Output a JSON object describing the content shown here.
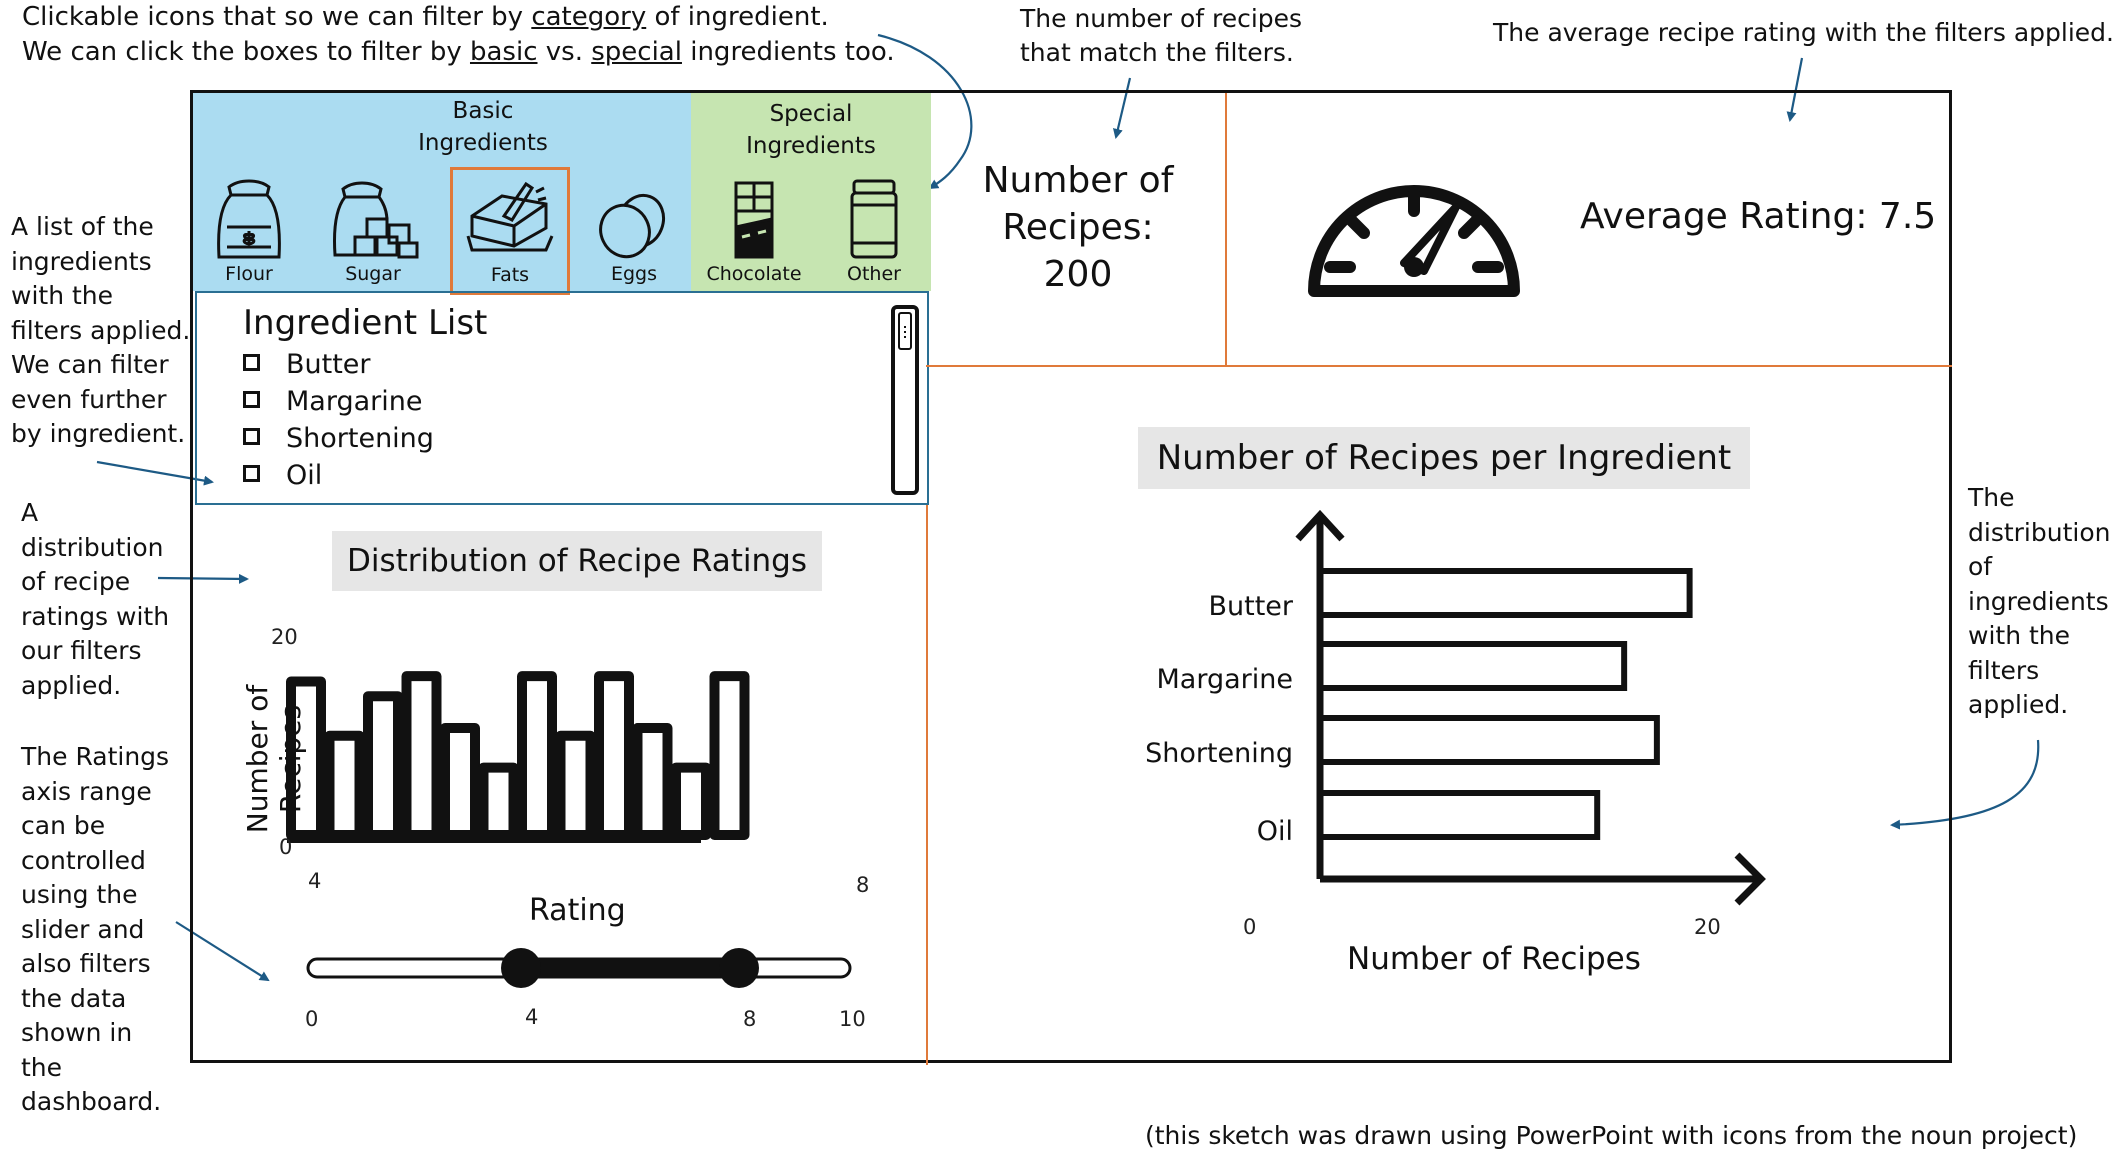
{
  "annotations": {
    "top_left_line1": "Clickable icons that so we can filter by",
    "top_left_category": "category",
    "top_left_line1_end": "of ingredient.",
    "top_left_line2_start": "We can click the boxes to filter by",
    "top_left_basic": "basic",
    "top_left_vs": "vs.",
    "top_left_special": "special",
    "top_left_line2_end": "ingredients too.",
    "recipe_count_line1": "The number of recipes",
    "recipe_count_line2": "that match the filters.",
    "average_rating": "The average recipe rating with the filters applied.",
    "ingredient_list": [
      "A list of the",
      "ingredients",
      "with the",
      "filters applied.",
      "We can filter",
      "even further",
      "by ingredient."
    ],
    "rating_distribution": [
      "A",
      "distribution",
      "of recipe",
      "ratings with",
      "our filters",
      "applied."
    ],
    "ratings_slider": [
      "The Ratings",
      "axis range",
      "can be",
      "controlled",
      "using the",
      "slider and",
      "also filters",
      "the data",
      "shown in",
      "the",
      "dashboard."
    ],
    "ingredient_distribution": [
      "The",
      "distribution",
      "of",
      "ingredients",
      "with the",
      "filters",
      "applied."
    ],
    "credit": "(this sketch was drawn using PowerPoint with icons from the noun project)"
  },
  "categories": {
    "basic_heading": [
      "Basic",
      "Ingredients"
    ],
    "special_heading": [
      "Special",
      "Ingredients"
    ],
    "items": [
      {
        "label": "Flour",
        "icon": "flour-bag-icon",
        "selected": false
      },
      {
        "label": "Sugar",
        "icon": "sugar-icon",
        "selected": false
      },
      {
        "label": "Fats",
        "icon": "butter-icon",
        "selected": true
      },
      {
        "label": "Eggs",
        "icon": "eggs-icon",
        "selected": false
      },
      {
        "label": "Chocolate",
        "icon": "chocolate-icon",
        "selected": false
      },
      {
        "label": "Other",
        "icon": "jar-icon",
        "selected": false
      }
    ],
    "colors": {
      "basic": "#abdcf1",
      "special": "#c6e5b1",
      "selected_border": "#e07a3a"
    }
  },
  "ingredient_list": {
    "title": "Ingredient List",
    "items": [
      "Butter",
      "Margarine",
      "Shortening",
      "Oil"
    ]
  },
  "recipe_count": {
    "line1": "Number of",
    "line2": "Recipes:",
    "value": "200"
  },
  "average_rating": {
    "label": "Average Rating: 7.5",
    "icon": "gauge-icon"
  },
  "ratings_slider": {
    "min_label": "0",
    "low_label": "4",
    "high_label": "8",
    "max_label": "10"
  },
  "chart_data": [
    {
      "type": "bar",
      "title": "Distribution of Recipe Ratings",
      "xlabel": "Rating",
      "ylabel": "Number of Recipes",
      "xlim": [
        4,
        8
      ],
      "ylim": [
        0,
        20
      ],
      "x_tick_labels": [
        "4",
        "8"
      ],
      "y_tick_labels": [
        "0",
        "20"
      ],
      "values": [
        19.8,
        12.8,
        17.9,
        20.5,
        13.8,
        8.7,
        20.5,
        12.8,
        20.5,
        13.8,
        8.7,
        20.5
      ]
    },
    {
      "type": "bar",
      "orientation": "horizontal",
      "title": "Number of Recipes per Ingredient",
      "xlabel": "Number of Recipes",
      "ylabel": "",
      "xlim": [
        0,
        20
      ],
      "x_tick_labels": [
        "0",
        "20"
      ],
      "categories": [
        "Butter",
        "Margarine",
        "Shortening",
        "Oil"
      ],
      "values": [
        19.2,
        15.8,
        17.5,
        14.4
      ]
    }
  ]
}
